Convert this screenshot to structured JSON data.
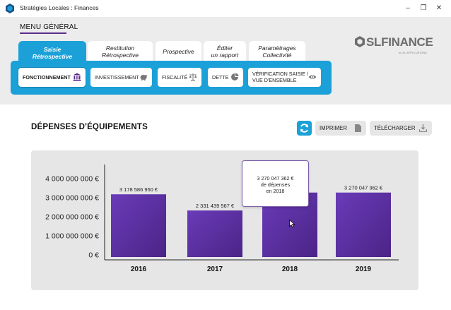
{
  "window": {
    "title": "Stratégies Locales : Finances",
    "minimize": "–",
    "maximize": "❐",
    "close": "✕"
  },
  "menu": {
    "title": "MENU GÉNÉRAL",
    "tabs": [
      {
        "label_line1": "Saisie",
        "label_line2": "Rétrospective"
      },
      {
        "label_line1": "Restitution",
        "label_line2": "Rétrospective"
      },
      {
        "label_line1": "Prospective",
        "label_line2": ""
      },
      {
        "label_line1": "Éditer",
        "label_line2": "un rapport"
      },
      {
        "label_line1": "Paramètrages",
        "label_line2": "Collectivité"
      }
    ],
    "subtabs": [
      {
        "label": "FONCTIONNEMENT",
        "icon": "bank-icon"
      },
      {
        "label": "INVESTISSEMENT",
        "icon": "piggy-bank-icon"
      },
      {
        "label": "FISCALITÉ",
        "icon": "scales-icon"
      },
      {
        "label": "DETTE",
        "icon": "pie-chart-icon"
      },
      {
        "label_line1": "VÉRIFICATION SAISIE /",
        "label_line2": "VUE D'ENSEMBLE",
        "icon": "eye-icon"
      }
    ]
  },
  "logo": {
    "brand": "SLFINANCE",
    "tagline": "by SL APPLICATIONS"
  },
  "section": {
    "title": "DÉPENSES D'ÉQUIPEMENTS",
    "print_label": "IMPRIMER",
    "download_label": "TÉLÉCHARGER"
  },
  "tooltip": {
    "line1": "3 270 047 362 €",
    "line2": "de dépenses",
    "line3": "en 2018"
  },
  "colors": {
    "accent": "#1ba1d8",
    "bar_top": "#6a3bb8",
    "bar_bottom": "#4b2487",
    "menu_underline": "#5a2b8c"
  },
  "chart_data": {
    "type": "bar",
    "categories": [
      "2016",
      "2017",
      "2018",
      "2019"
    ],
    "values": [
      3178586950,
      2331439567,
      3270047362,
      3270047362
    ],
    "value_labels": [
      "3 178 586 950 €",
      "2 331 439 567 €",
      "3 270 047 362 €",
      "3 270 047 362 €"
    ],
    "ylim": [
      0,
      4000000000
    ],
    "yticks": [
      0,
      1000000000,
      2000000000,
      3000000000,
      4000000000
    ],
    "ytick_labels": [
      "0 €",
      "1 000 000 000 €",
      "2 000 000 000 €",
      "3 000 000 000 €",
      "4 000 000 000 €"
    ],
    "grid": false,
    "legend": "none"
  }
}
